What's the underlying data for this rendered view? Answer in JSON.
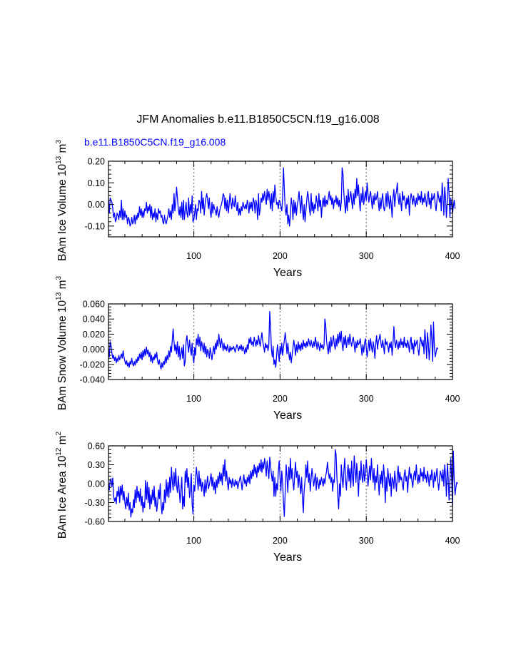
{
  "title": "JFM Anomalies b.e11.B1850C5CN.f19_g16.008",
  "legend_label": "b.e11.B1850C5CN.f19_g16.008",
  "colors": {
    "series": "#0000ff",
    "axis": "#000000",
    "refline": "#888888"
  },
  "chart_data": [
    {
      "type": "line",
      "ylabel": "BAm Ice Volume 10",
      "ylabel_sup": "13",
      "ylabel_unit": "m",
      "ylabel_unit_sup": "3",
      "xlabel": "Years",
      "xlim": [
        1,
        400
      ],
      "ylim": [
        -0.15,
        0.2
      ],
      "yticks": [
        -0.1,
        0.0,
        0.1,
        0.2
      ],
      "ytick_labels": [
        "-0.10",
        "0.00",
        "0.10",
        "0.20"
      ],
      "xticks": [
        100,
        200,
        300,
        400
      ],
      "xtick_labels": [
        "100",
        "200",
        "300",
        "400"
      ],
      "reference_lines_x": [
        100,
        200,
        300
      ],
      "values": [
        0.02,
        -0.04,
        0.03,
        0.02,
        0.01,
        -0.02,
        -0.06,
        -0.04,
        -0.08,
        -0.07,
        -0.04,
        -0.05,
        -0.07,
        -0.03,
        -0.06,
        0.02,
        -0.07,
        -0.02,
        -0.07,
        -0.03,
        -0.06,
        -0.05,
        -0.09,
        -0.06,
        -0.07,
        -0.1,
        -0.09,
        -0.06,
        -0.09,
        -0.08,
        -0.05,
        -0.09,
        -0.05,
        -0.07,
        -0.04,
        -0.06,
        -0.01,
        -0.05,
        -0.02,
        -0.06,
        -0.03,
        -0.06,
        -0.02,
        -0.03,
        0.01,
        -0.04,
        -0.01,
        -0.03,
        0.0,
        -0.06,
        -0.01,
        -0.07,
        -0.04,
        -0.06,
        -0.02,
        -0.08,
        -0.04,
        -0.07,
        -0.02,
        -0.04,
        -0.03,
        -0.06,
        -0.05,
        -0.08,
        -0.09,
        -0.05,
        -0.08,
        -0.09,
        -0.07,
        -0.05,
        -0.02,
        -0.06,
        -0.03,
        -0.07,
        0.0,
        -0.04,
        0.05,
        -0.03,
        0.01,
        0.08,
        0.03,
        -0.02,
        -0.05,
        -0.01,
        -0.06,
        0.01,
        -0.07,
        0.02,
        -0.07,
        -0.03,
        0.01,
        -0.04,
        -0.06,
        0.03,
        -0.05,
        0.0,
        -0.04,
        0.04,
        -0.08,
        -0.07,
        -0.04,
        0.0,
        -0.07,
        -0.02,
        -0.03,
        0.02,
        0.01,
        -0.04,
        0.06,
        -0.02,
        0.03,
        -0.05,
        0.0,
        0.03,
        0.05,
        0.02,
        -0.02,
        0.03,
        -0.03,
        -0.06,
        0.01,
        -0.04,
        0.0,
        -0.02,
        -0.03,
        -0.05,
        -0.01,
        -0.04,
        -0.06,
        -0.03,
        -0.01,
        0.0,
        0.02,
        0.05,
        0.04,
        -0.02,
        0.03,
        -0.03,
        0.02,
        -0.04,
        0.0,
        0.05,
        0.01,
        -0.02,
        0.03,
        0.0,
        -0.01,
        0.04,
        0.0,
        -0.03,
        0.01,
        -0.05,
        -0.02,
        -0.05,
        -0.01,
        -0.03,
        0.01,
        -0.01,
        -0.02,
        0.0,
        -0.02,
        0.02,
        0.0,
        -0.04,
        0.01,
        -0.02,
        0.01,
        -0.03,
        0.03,
        0.01,
        -0.04,
        0.02,
        0.0,
        -0.07,
        0.05,
        -0.05,
        -0.02,
        0.03,
        0.01,
        0.05,
        0.02,
        0.06,
        0.03,
        0.0,
        0.07,
        0.02,
        0.06,
        0.03,
        -0.02,
        0.05,
        -0.03,
        0.06,
        0.01,
        0.09,
        0.04,
        0.0,
        0.01,
        -0.02,
        0.02,
        0.01,
        -0.01,
        -0.03,
        0.03,
        0.17,
        0.07,
        -0.02,
        -0.05,
        0.0,
        -0.09,
        -0.05,
        -0.1,
        -0.05,
        0.03,
        0.0,
        -0.07,
        0.02,
        -0.04,
        0.01,
        -0.05,
        0.0,
        0.02,
        0.06,
        0.01,
        -0.04,
        0.04,
        -0.02,
        -0.07,
        0.0,
        -0.08,
        -0.03,
        0.02,
        0.06,
        0.03,
        -0.02,
        -0.05,
        0.05,
        -0.03,
        0.01,
        -0.04,
        0.0,
        -0.02,
        0.04,
        0.01,
        -0.03,
        0.05,
        -0.01,
        0.02,
        -0.06,
        0.0,
        0.03,
        -0.01,
        0.04,
        -0.01,
        0.02,
        0.0,
        0.03,
        0.06,
        0.02,
        0.04,
        0.0,
        0.03,
        -0.02,
        0.02,
        0.01,
        0.04,
        0.0,
        0.03,
        -0.01,
        0.02,
        -0.03,
        0.01,
        0.17,
        0.14,
        0.05,
        0.0,
        -0.04,
        0.04,
        -0.03,
        0.07,
        0.01,
        0.03,
        0.06,
        0.02,
        -0.02,
        0.05,
        0.0,
        0.07,
        0.03,
        0.12,
        0.04,
        0.09,
        0.02,
        -0.03,
        0.05,
        0.01,
        0.08,
        0.0,
        0.03,
        0.06,
        0.02,
        0.1,
        0.05,
        0.01,
        0.04,
        0.06,
        0.02,
        -0.02,
        0.04,
        0.0,
        0.05,
        0.02,
        0.03,
        0.06,
        0.01,
        -0.03,
        0.03,
        -0.02,
        0.02,
        0.05,
        -0.01,
        -0.03,
        0.0,
        0.05,
        -0.01,
        0.06,
        0.02,
        -0.02,
        0.04,
        0.0,
        -0.06,
        0.03,
        0.07,
        -0.01,
        0.04,
        0.06,
        0.1,
        0.03,
        0.0,
        0.05,
        0.01,
        -0.03,
        0.06,
        0.02,
        0.04,
        0.01,
        -0.02,
        0.03,
        0.0,
        0.04,
        -0.05,
        0.02,
        0.05,
        0.03,
        0.0,
        0.04,
        0.01,
        -0.01,
        0.03,
        0.0,
        0.05,
        0.02,
        0.04,
        0.01,
        0.06,
        0.0,
        0.03,
        0.01,
        0.05,
        0.02,
        -0.01,
        0.04,
        0.06,
        0.0,
        0.03,
        -0.02,
        0.05,
        0.02,
        0.03,
        0.05,
        0.0,
        -0.03,
        0.02,
        0.06,
        0.03,
        0.01,
        0.04,
        -0.03,
        0.1,
        0.04,
        -0.05,
        0.08,
        0.03,
        -0.06,
        0.02,
        0.12,
        0.05,
        -0.06,
        0.03,
        0.0,
        -0.04,
        -0.01,
        0.02,
        -0.02
      ]
    },
    {
      "type": "line",
      "ylabel": "BAm Snow Volume 10",
      "ylabel_sup": "13",
      "ylabel_unit": "m",
      "ylabel_unit_sup": "3",
      "xlabel": "Years",
      "xlim": [
        1,
        400
      ],
      "ylim": [
        -0.04,
        0.06
      ],
      "yticks": [
        -0.04,
        -0.02,
        0.0,
        0.02,
        0.04,
        0.06
      ],
      "ytick_labels": [
        "-0.040",
        "-0.020",
        "0.000",
        "0.020",
        "0.040",
        "0.060"
      ],
      "xticks": [
        100,
        200,
        300,
        400
      ],
      "xtick_labels": [
        "100",
        "200",
        "300",
        "400"
      ],
      "reference_lines_x": [
        100,
        200,
        300
      ],
      "values": [
        0.0,
        -0.01,
        0.01,
        0.005,
        -0.005,
        -0.012,
        -0.008,
        -0.015,
        -0.01,
        -0.018,
        -0.012,
        -0.016,
        -0.008,
        -0.014,
        -0.01,
        -0.006,
        -0.012,
        -0.002,
        -0.01,
        -0.016,
        -0.02,
        -0.015,
        -0.022,
        -0.018,
        -0.024,
        -0.016,
        -0.02,
        -0.012,
        -0.019,
        -0.022,
        -0.016,
        -0.021,
        -0.013,
        -0.018,
        -0.01,
        -0.015,
        -0.006,
        -0.012,
        -0.004,
        -0.014,
        -0.002,
        -0.01,
        0.0,
        -0.008,
        0.003,
        -0.006,
        -0.001,
        -0.01,
        -0.004,
        -0.016,
        -0.008,
        -0.018,
        -0.01,
        -0.014,
        -0.006,
        -0.012,
        -0.004,
        -0.016,
        -0.02,
        -0.014,
        -0.022,
        -0.026,
        -0.018,
        -0.024,
        -0.016,
        -0.02,
        -0.01,
        -0.018,
        -0.008,
        -0.014,
        -0.002,
        -0.01,
        0.004,
        -0.004,
        0.012,
        0.027,
        0.01,
        -0.002,
        0.006,
        -0.006,
        0.01,
        -0.01,
        0.004,
        -0.014,
        -0.006,
        0.002,
        -0.012,
        0.006,
        -0.022,
        -0.016,
        0.01,
        0.018,
        0.006,
        -0.004,
        0.012,
        0.0,
        -0.008,
        0.008,
        -0.01,
        -0.018,
        0.002,
        -0.008,
        0.014,
        0.006,
        0.02,
        0.004,
        0.016,
        -0.002,
        0.01,
        0.004,
        -0.004,
        0.008,
        -0.006,
        0.004,
        -0.01,
        0.0,
        -0.004,
        -0.012,
        0.002,
        -0.006,
        -0.014,
        -0.004,
        0.004,
        -0.006,
        0.008,
        0.0,
        0.012,
        0.004,
        0.02,
        0.01,
        0.002,
        0.014,
        0.006,
        -0.002,
        0.008,
        0.0,
        0.004,
        -0.002,
        0.006,
        0.0,
        -0.004,
        0.004,
        -0.002,
        0.002,
        0.0,
        0.004,
        0.0,
        -0.004,
        0.002,
        0.006,
        0.002,
        -0.002,
        0.004,
        0.0,
        0.006,
        -0.002,
        0.004,
        0.0,
        -0.006,
        0.002,
        -0.004,
        0.006,
        0.0,
        0.014,
        0.008,
        0.016,
        0.006,
        0.01,
        0.004,
        0.016,
        0.01,
        0.004,
        0.012,
        0.006,
        0.018,
        0.01,
        0.004,
        0.014,
        0.022,
        0.01,
        0.004,
        -0.004,
        0.008,
        0.002,
        0.006,
        -0.002,
        0.006,
        0.05,
        0.03,
        0.0,
        -0.01,
        0.004,
        -0.02,
        -0.014,
        -0.024,
        -0.008,
        0.006,
        -0.004,
        -0.016,
        0.004,
        -0.006,
        0.008,
        -0.008,
        0.002,
        0.012,
        0.022,
        0.01,
        -0.006,
        0.008,
        -0.004,
        -0.014,
        -0.004,
        -0.018,
        -0.008,
        0.002,
        0.012,
        0.004,
        -0.008,
        0.006,
        -0.004,
        0.01,
        0.0,
        0.006,
        -0.002,
        0.008,
        0.0,
        0.012,
        0.004,
        0.008,
        0.002,
        0.01,
        0.004,
        0.014,
        0.008,
        0.004,
        0.012,
        0.006,
        0.002,
        0.01,
        0.004,
        0.016,
        0.008,
        0.0,
        0.01,
        0.004,
        -0.002,
        0.008,
        0.002,
        0.006,
        0.0,
        0.004,
        0.04,
        0.032,
        0.01,
        0.002,
        -0.006,
        0.01,
        -0.004,
        0.016,
        0.004,
        0.01,
        0.018,
        0.006,
        0.0,
        0.014,
        0.004,
        0.02,
        0.008,
        0.022,
        0.01,
        0.024,
        0.006,
        -0.002,
        0.016,
        0.006,
        0.018,
        0.002,
        0.01,
        0.016,
        0.006,
        0.02,
        0.01,
        0.004,
        0.012,
        0.016,
        0.006,
        -0.004,
        0.01,
        0.002,
        0.012,
        0.006,
        0.008,
        0.014,
        0.004,
        -0.008,
        0.006,
        -0.004,
        0.008,
        0.014,
        0.002,
        -0.01,
        0.0,
        0.012,
        -0.002,
        0.014,
        0.004,
        -0.004,
        0.01,
        0.002,
        -0.012,
        0.008,
        0.018,
        0.0,
        0.01,
        0.014,
        0.02,
        0.008,
        0.002,
        0.012,
        0.004,
        -0.006,
        0.014,
        0.006,
        0.01,
        0.004,
        -0.004,
        0.008,
        0.002,
        0.01,
        -0.008,
        0.006,
        0.03,
        0.01,
        0.002,
        0.012,
        0.006,
        0.0,
        0.01,
        0.002,
        0.014,
        0.006,
        0.01,
        0.002,
        0.016,
        0.004,
        0.008,
        0.002,
        0.012,
        0.006,
        -0.004,
        0.01,
        0.016,
        0.0,
        0.008,
        -0.006,
        0.012,
        0.004,
        0.008,
        0.012,
        0.0,
        -0.008,
        0.006,
        0.016,
        0.01,
        0.004,
        0.012,
        -0.006,
        0.026,
        0.01,
        -0.012,
        0.022,
        0.008,
        -0.014,
        0.004,
        0.032,
        0.014,
        -0.016,
        0.036,
        0.004,
        -0.01,
        -0.004,
        0.002,
        0.0
      ]
    },
    {
      "type": "line",
      "ylabel": "BAm Ice Area 10",
      "ylabel_sup": "12",
      "ylabel_unit": "m",
      "ylabel_unit_sup": "2",
      "xlabel": "Years",
      "xlim": [
        1,
        400
      ],
      "ylim": [
        -0.6,
        0.6
      ],
      "yticks": [
        -0.6,
        -0.3,
        0.0,
        0.3,
        0.6
      ],
      "ytick_labels": [
        "-0.60",
        "-0.30",
        "0.00",
        "0.30",
        "0.60"
      ],
      "xticks": [
        100,
        200,
        300,
        400
      ],
      "xtick_labels": [
        "100",
        "200",
        "300",
        "400"
      ],
      "reference_lines_x": [
        100,
        200,
        300
      ],
      "values": [
        0.0,
        -0.1,
        0.05,
        0.08,
        -0.05,
        0.09,
        -0.2,
        -0.28,
        -0.22,
        -0.32,
        -0.12,
        -0.2,
        -0.05,
        -0.3,
        -0.04,
        -0.18,
        -0.02,
        -0.26,
        -0.12,
        -0.3,
        -0.4,
        -0.22,
        -0.35,
        -0.15,
        -0.42,
        -0.3,
        -0.53,
        -0.4,
        -0.46,
        -0.25,
        -0.38,
        -0.1,
        -0.3,
        -0.04,
        -0.22,
        -0.12,
        -0.28,
        -0.08,
        -0.35,
        -0.2,
        -0.45,
        -0.3,
        -0.38,
        0.05,
        -0.25,
        0.02,
        -0.3,
        -0.06,
        -0.4,
        -0.18,
        -0.32,
        -0.1,
        -0.26,
        -0.04,
        -0.36,
        -0.22,
        -0.44,
        -0.3,
        -0.1,
        -0.24,
        0.0,
        -0.32,
        -0.48,
        -0.3,
        -0.42,
        -0.1,
        -0.3,
        0.06,
        -0.2,
        0.02,
        -0.22,
        0.1,
        -0.14,
        0.26,
        0.04,
        -0.1,
        0.18,
        -0.04,
        0.24,
        -0.02,
        -0.14,
        0.12,
        -0.1,
        -0.3,
        -0.1,
        0.1,
        -0.4,
        -0.2,
        -0.36,
        0.2,
        0.02,
        0.24,
        -0.06,
        0.1,
        -0.22,
        -0.1,
        0.16,
        -0.32,
        -0.48,
        -0.02,
        -0.12,
        0.08,
        0.26,
        0.1,
        -0.1,
        0.2,
        -0.04,
        0.08,
        -0.12,
        0.02,
        -0.06,
        -0.2,
        0.06,
        -0.14,
        0.0,
        0.12,
        -0.08,
        -0.02,
        0.06,
        0.16,
        -0.04,
        0.1,
        -0.1,
        0.02,
        -0.16,
        0.06,
        -0.06,
        0.12,
        0.0,
        0.18,
        0.04,
        0.16,
        -0.02,
        0.3,
        0.12,
        0.38,
        0.04,
        0.2,
        0.02,
        -0.1,
        0.1,
        0.0,
        0.06,
        -0.06,
        0.08,
        0.0,
        -0.04,
        0.06,
        -0.02,
        0.04,
        -0.08,
        0.0,
        0.06,
        0.12,
        0.02,
        -0.1,
        0.04,
        0.14,
        0.0,
        0.06,
        -0.04,
        0.1,
        0.02,
        0.14,
        0.0,
        0.2,
        0.08,
        0.22,
        0.12,
        0.3,
        0.16,
        0.26,
        0.1,
        0.28,
        0.18,
        0.32,
        0.2,
        0.38,
        0.18,
        0.34,
        0.24,
        0.4,
        0.3,
        0.12,
        0.36,
        0.24,
        0.08,
        0.42,
        0.3,
        0.14,
        0.04,
        0.2,
        -0.2,
        0.1,
        -0.2,
        0.0,
        -0.1,
        0.2,
        0.36,
        0.1,
        -0.12,
        0.2,
        0.02,
        -0.3,
        -0.52,
        -0.14,
        0.3,
        0.1,
        -0.14,
        0.26,
        0.06,
        0.4,
        0.08,
        0.24,
        0.02,
        -0.1,
        0.16,
        0.34,
        0.1,
        0.2,
        -0.06,
        0.14,
        0.0,
        -0.16,
        0.1,
        -0.24,
        -0.46,
        -0.1,
        0.04,
        0.3,
        0.1,
        0.36,
        0.02,
        0.16,
        -0.12,
        0.08,
        0.24,
        0.12,
        -0.04,
        0.06,
        0.16,
        -0.1,
        0.1,
        0.02,
        -0.08,
        0.06,
        -0.02,
        0.1,
        0.04,
        -0.04,
        0.08,
        0.0,
        0.12,
        0.2,
        0.34,
        0.2,
        0.08,
        0.16,
        0.02,
        0.1,
        -0.12,
        0.06,
        0.02,
        0.54,
        0.46,
        0.1,
        -0.2,
        -0.4,
        0.0,
        -0.2,
        0.3,
        0.1,
        -0.06,
        0.2,
        0.4,
        0.06,
        -0.1,
        0.16,
        0.3,
        0.04,
        0.24,
        -0.06,
        0.36,
        0.1,
        -0.04,
        0.44,
        0.24,
        0.02,
        0.32,
        0.1,
        -0.2,
        0.2,
        0.06,
        0.36,
        0.1,
        0.02,
        0.3,
        0.04,
        0.16,
        0.38,
        0.2,
        -0.04,
        0.12,
        0.28,
        0.06,
        0.4,
        0.16,
        0.02,
        0.24,
        -0.1,
        0.12,
        0.02,
        0.3,
        0.04,
        -0.18,
        0.14,
        0.0,
        0.2,
        -0.06,
        0.3,
        0.12,
        -0.3,
        0.1,
        -0.12,
        0.24,
        0.08,
        -0.04,
        0.16,
        -0.2,
        0.1,
        0.06,
        -0.08,
        0.2,
        0.04,
        -0.12,
        0.14,
        0.28,
        0.02,
        0.18,
        0.06,
        0.1,
        -0.02,
        -0.1,
        0.14,
        0.22,
        0.04,
        0.12,
        -0.14,
        0.1,
        0.26,
        0.08,
        0.16,
        0.04,
        -0.06,
        0.12,
        0.2,
        0.06,
        0.3,
        0.1,
        0.0,
        0.14,
        0.02,
        0.24,
        0.12,
        0.18,
        0.04,
        0.26,
        0.08,
        0.14,
        0.02,
        0.2,
        0.1,
        -0.04,
        0.14,
        0.06,
        0.22,
        0.1,
        -0.06,
        0.18,
        0.04,
        0.12,
        0.24,
        0.02,
        -0.1,
        0.08,
        0.2,
        0.14,
        0.04,
        0.22,
        -0.04,
        0.3,
        0.14,
        -0.2,
        0.32,
        0.1,
        -0.26,
        0.06,
        0.4,
        0.12,
        -0.36,
        0.52,
        0.06,
        -0.18,
        -0.06,
        0.02,
        0.0
      ]
    }
  ]
}
